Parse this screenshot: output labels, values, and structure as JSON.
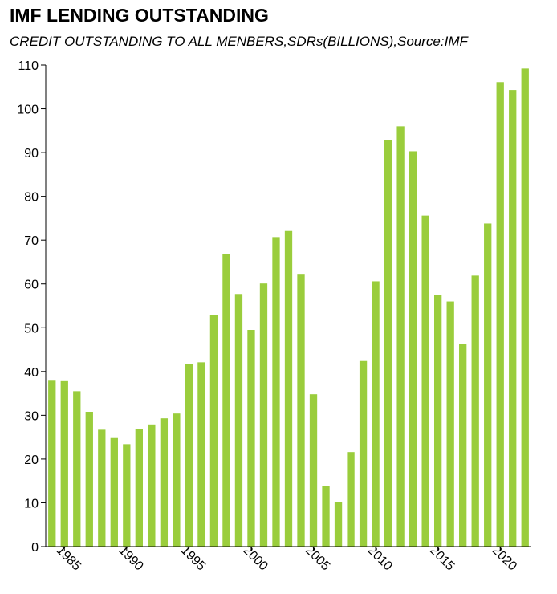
{
  "chart_data": {
    "type": "bar",
    "title": "IMF LENDING OUTSTANDING",
    "subtitle": "CREDIT OUTSTANDING TO ALL MENBERS,SDRs(BILLIONS),Source:IMF",
    "xlabel": "",
    "ylabel": "",
    "x": [
      1984,
      1985,
      1986,
      1987,
      1988,
      1989,
      1990,
      1991,
      1992,
      1993,
      1994,
      1995,
      1996,
      1997,
      1998,
      1999,
      2000,
      2001,
      2002,
      2003,
      2004,
      2005,
      2006,
      2007,
      2008,
      2009,
      2010,
      2011,
      2012,
      2013,
      2014,
      2015,
      2016,
      2017,
      2018,
      2019,
      2020,
      2021,
      2022
    ],
    "values": [
      37.9,
      37.8,
      35.5,
      30.8,
      26.7,
      24.8,
      23.4,
      26.8,
      27.9,
      29.3,
      30.4,
      41.7,
      42.1,
      52.8,
      66.9,
      57.7,
      49.5,
      60.1,
      70.7,
      72.1,
      62.3,
      34.8,
      13.8,
      10.1,
      21.6,
      42.4,
      60.6,
      92.8,
      96.0,
      90.3,
      75.6,
      57.5,
      56.0,
      46.3,
      61.9,
      73.8,
      106.1,
      104.3,
      109.2
    ],
    "ylim": [
      0,
      110
    ],
    "yticks": [
      0,
      10,
      20,
      30,
      40,
      50,
      60,
      70,
      80,
      90,
      100,
      110
    ],
    "xticks": [
      1985,
      1990,
      1995,
      2000,
      2005,
      2010,
      2015,
      2020
    ],
    "grid": false,
    "legend": "none",
    "bar_color": "#9acd3c"
  }
}
